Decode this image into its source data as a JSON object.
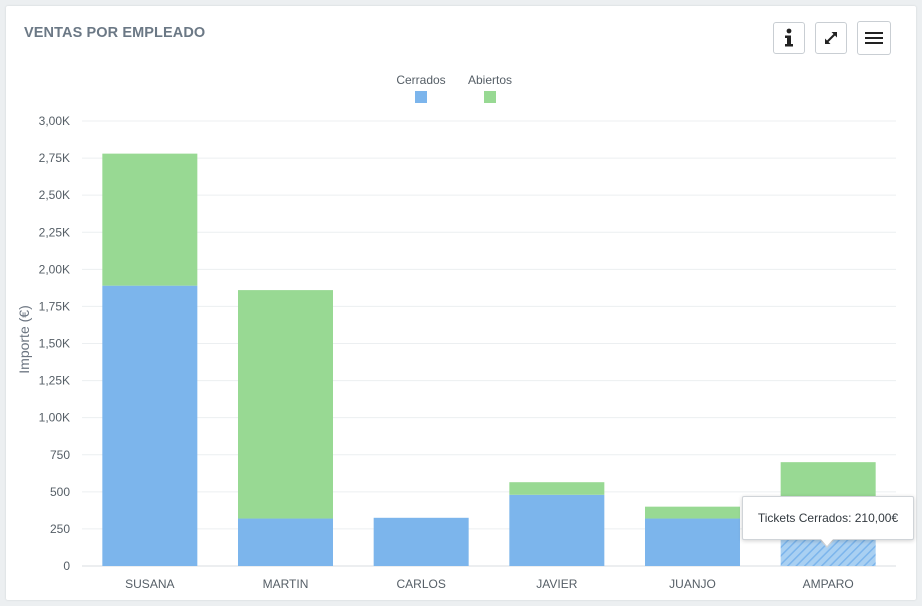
{
  "panel": {
    "title": "VENTAS POR EMPLEADO"
  },
  "toolbar": {
    "info_icon": "info-icon",
    "expand_icon": "expand-icon",
    "menu_icon": "hamburger-menu-icon"
  },
  "tooltip": {
    "text": "Tickets Cerrados: 210,00€"
  },
  "colors": {
    "cerrados": "#7cb5ec",
    "abiertos": "#98d993",
    "grid": "#eceff1",
    "axis": "#d8dde2"
  },
  "chart_data": {
    "type": "bar",
    "stacked": true,
    "title": "VENTAS POR EMPLEADO",
    "xlabel": "",
    "ylabel": "Importe (€)",
    "ylim": [
      0,
      3000
    ],
    "yticks": [
      0,
      250,
      500,
      750,
      1000,
      1250,
      1500,
      1750,
      2000,
      2250,
      2500,
      2750,
      3000
    ],
    "ytick_labels": [
      "0",
      "250",
      "500",
      "750",
      "1,00K",
      "1,25K",
      "1,50K",
      "1,75K",
      "2,00K",
      "2,25K",
      "2,50K",
      "2,75K",
      "3,00K"
    ],
    "categories": [
      "SUSANA",
      "MARTIN",
      "CARLOS",
      "JAVIER",
      "JUANJO",
      "AMPARO"
    ],
    "series": [
      {
        "name": "Cerrados",
        "values": [
          1890,
          320,
          325,
          480,
          320,
          210
        ]
      },
      {
        "name": "Abiertos",
        "values": [
          890,
          1540,
          0,
          85,
          80,
          490
        ]
      }
    ],
    "highlighted": {
      "series": "Cerrados",
      "category": "AMPARO"
    },
    "legend_position": "top-center",
    "grid": true
  }
}
